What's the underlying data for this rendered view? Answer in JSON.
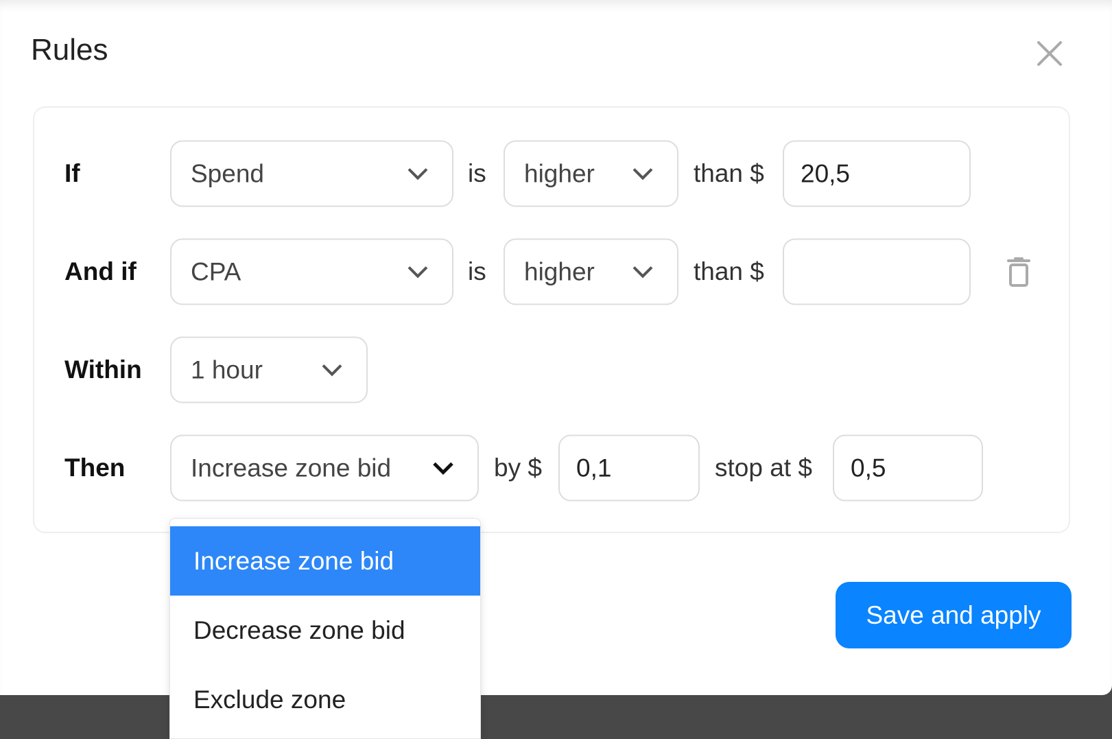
{
  "dialog": {
    "title": "Rules",
    "close_icon": "close-icon"
  },
  "rows": {
    "if": {
      "label": "If",
      "metric": "Spend",
      "is": "is",
      "comparison": "higher",
      "than": "than $",
      "value": "20,5"
    },
    "and_if": {
      "label": "And if",
      "metric": "CPA",
      "is": "is",
      "comparison": "higher",
      "than": "than $",
      "value": "",
      "delete_icon": "trash-icon"
    },
    "within": {
      "label": "Within",
      "period": "1 hour"
    },
    "then": {
      "label": "Then",
      "action": "Increase zone bid",
      "by": "by $",
      "by_value": "0,1",
      "stop_at": "stop at $",
      "stop_value": "0,5"
    }
  },
  "action_dropdown": {
    "options": [
      "Increase zone bid",
      "Decrease zone bid",
      "Exclude zone"
    ],
    "selected": "Increase zone bid"
  },
  "footer": {
    "save_label": "Save and apply"
  },
  "colors": {
    "primary": "#0a84ff",
    "highlight": "#2d87f8"
  }
}
